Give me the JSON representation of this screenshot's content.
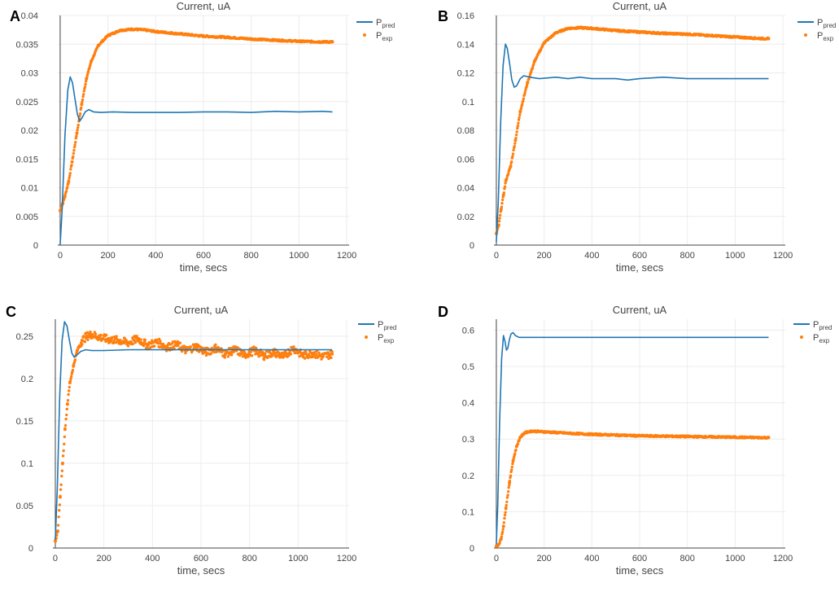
{
  "chart_data": [
    {
      "panel_label": "A",
      "type": "line",
      "title": "Current, uA",
      "xlabel": "time, secs",
      "ylabel": "",
      "xlim": [
        -10,
        1210
      ],
      "ylim": [
        0,
        0.04
      ],
      "xticks": [
        0,
        200,
        400,
        600,
        800,
        1000,
        1200
      ],
      "yticks": [
        0,
        0.005,
        0.01,
        0.015,
        0.02,
        0.025,
        0.03,
        0.035,
        0.04
      ],
      "ytick_labels": [
        "0",
        "0.005",
        "0.01",
        "0.015",
        "0.02",
        "0.025",
        "0.03",
        "0.035",
        "0.04"
      ],
      "grid": true,
      "legend_position": "top-right",
      "series": [
        {
          "name_main": "P",
          "name_sub": "pred",
          "style": "line",
          "color": "#1f77b4",
          "x": [
            0,
            8,
            20,
            32,
            42,
            52,
            62,
            72,
            82,
            92,
            105,
            120,
            140,
            170,
            220,
            300,
            400,
            500,
            600,
            700,
            800,
            900,
            1000,
            1100,
            1140
          ],
          "y": [
            0,
            0.006,
            0.019,
            0.027,
            0.0293,
            0.0282,
            0.0255,
            0.0228,
            0.0216,
            0.0222,
            0.0232,
            0.0236,
            0.0232,
            0.0231,
            0.0232,
            0.0231,
            0.0231,
            0.0231,
            0.0232,
            0.0232,
            0.0231,
            0.0233,
            0.0232,
            0.0233,
            0.0232
          ]
        },
        {
          "name_main": "P",
          "name_sub": "exp",
          "style": "markers",
          "color": "#ff7f0e",
          "x": [
            0,
            10,
            20,
            35,
            50,
            70,
            90,
            110,
            130,
            160,
            200,
            250,
            300,
            350,
            400,
            500,
            600,
            700,
            800,
            900,
            1000,
            1100,
            1140
          ],
          "y": [
            0.006,
            0.0072,
            0.0085,
            0.011,
            0.0145,
            0.0195,
            0.0245,
            0.029,
            0.032,
            0.0348,
            0.0365,
            0.0374,
            0.0376,
            0.0375,
            0.0372,
            0.0368,
            0.0364,
            0.0362,
            0.0359,
            0.0357,
            0.0355,
            0.0354,
            0.0354
          ]
        }
      ]
    },
    {
      "panel_label": "B",
      "type": "line",
      "title": "Current, uA",
      "xlabel": "time, secs",
      "ylabel": "",
      "xlim": [
        -10,
        1210
      ],
      "ylim": [
        0,
        0.16
      ],
      "xticks": [
        0,
        200,
        400,
        600,
        800,
        1000,
        1200
      ],
      "yticks": [
        0,
        0.02,
        0.04,
        0.06,
        0.08,
        0.1,
        0.12,
        0.14,
        0.16
      ],
      "ytick_labels": [
        "0",
        "0.02",
        "0.04",
        "0.06",
        "0.08",
        "0.1",
        "0.12",
        "0.14",
        "0.16"
      ],
      "grid": true,
      "legend_position": "top-right",
      "series": [
        {
          "name_main": "P",
          "name_sub": "pred",
          "style": "line",
          "color": "#1f77b4",
          "x": [
            0,
            8,
            18,
            28,
            38,
            46,
            55,
            65,
            75,
            85,
            100,
            115,
            140,
            180,
            250,
            300,
            350,
            400,
            500,
            550,
            600,
            700,
            800,
            900,
            1000,
            1100,
            1140
          ],
          "y": [
            0.002,
            0.03,
            0.085,
            0.125,
            0.14,
            0.137,
            0.127,
            0.115,
            0.11,
            0.111,
            0.116,
            0.118,
            0.117,
            0.116,
            0.117,
            0.116,
            0.117,
            0.116,
            0.116,
            0.115,
            0.116,
            0.117,
            0.116,
            0.116,
            0.116,
            0.116,
            0.116
          ]
        },
        {
          "name_main": "P",
          "name_sub": "exp",
          "style": "markers",
          "color": "#ff7f0e",
          "x": [
            0,
            10,
            20,
            30,
            40,
            60,
            80,
            100,
            130,
            160,
            200,
            250,
            300,
            350,
            400,
            500,
            600,
            700,
            800,
            900,
            1000,
            1100,
            1140
          ],
          "y": [
            0.008,
            0.014,
            0.025,
            0.035,
            0.045,
            0.055,
            0.073,
            0.093,
            0.113,
            0.128,
            0.141,
            0.148,
            0.151,
            0.1515,
            0.151,
            0.1495,
            0.1485,
            0.1475,
            0.147,
            0.146,
            0.145,
            0.144,
            0.1438
          ]
        }
      ]
    },
    {
      "panel_label": "C",
      "type": "line",
      "title": "Current, uA",
      "xlabel": "time, secs",
      "ylabel": "",
      "xlim": [
        -10,
        1210
      ],
      "ylim": [
        0,
        0.27
      ],
      "xticks": [
        0,
        200,
        400,
        600,
        800,
        1000,
        1200
      ],
      "yticks": [
        0,
        0.05,
        0.1,
        0.15,
        0.2,
        0.25
      ],
      "ytick_labels": [
        "0",
        "0.05",
        "0.1",
        "0.15",
        "0.2",
        "0.25"
      ],
      "grid": true,
      "legend_position": "top-right",
      "series": [
        {
          "name_main": "P",
          "name_sub": "pred",
          "style": "line",
          "color": "#1f77b4",
          "x": [
            0,
            8,
            18,
            28,
            38,
            48,
            58,
            68,
            78,
            90,
            105,
            125,
            150,
            200,
            300,
            400,
            500,
            600,
            700,
            800,
            900,
            1000,
            1100,
            1140
          ],
          "y": [
            0.01,
            0.07,
            0.18,
            0.245,
            0.267,
            0.262,
            0.245,
            0.23,
            0.225,
            0.228,
            0.232,
            0.234,
            0.233,
            0.233,
            0.234,
            0.234,
            0.234,
            0.234,
            0.234,
            0.234,
            0.234,
            0.234,
            0.234,
            0.234
          ]
        },
        {
          "name_main": "P",
          "name_sub": "exp",
          "style": "markers",
          "color": "#ff7f0e",
          "x": [
            0,
            10,
            20,
            30,
            40,
            50,
            60,
            75,
            90,
            110,
            130,
            150,
            180,
            220,
            260,
            300,
            340,
            380,
            420,
            460,
            500,
            540,
            580,
            620,
            660,
            700,
            740,
            780,
            820,
            860,
            900,
            940,
            980,
            1020,
            1060,
            1100,
            1140
          ],
          "y": [
            0.008,
            0.02,
            0.06,
            0.1,
            0.14,
            0.17,
            0.195,
            0.215,
            0.233,
            0.245,
            0.25,
            0.252,
            0.249,
            0.246,
            0.245,
            0.242,
            0.247,
            0.239,
            0.243,
            0.237,
            0.24,
            0.233,
            0.238,
            0.231,
            0.236,
            0.229,
            0.234,
            0.228,
            0.233,
            0.227,
            0.231,
            0.226,
            0.236,
            0.227,
            0.23,
            0.226,
            0.229
          ]
        }
      ]
    },
    {
      "panel_label": "D",
      "type": "line",
      "title": "Current, uA",
      "xlabel": "time, secs",
      "ylabel": "",
      "xlim": [
        -10,
        1210
      ],
      "ylim": [
        0,
        0.63
      ],
      "xticks": [
        0,
        200,
        400,
        600,
        800,
        1000,
        1200
      ],
      "yticks": [
        0,
        0.1,
        0.2,
        0.3,
        0.4,
        0.5,
        0.6
      ],
      "ytick_labels": [
        "0",
        "0.1",
        "0.2",
        "0.3",
        "0.4",
        "0.5",
        "0.6"
      ],
      "grid": true,
      "legend_position": "top-right",
      "series": [
        {
          "name_main": "P",
          "name_sub": "pred",
          "style": "line",
          "color": "#1f77b4",
          "x": [
            0,
            6,
            14,
            22,
            30,
            36,
            42,
            48,
            55,
            62,
            70,
            80,
            95,
            120,
            200,
            400,
            600,
            800,
            1000,
            1140
          ],
          "y": [
            0.01,
            0.12,
            0.35,
            0.52,
            0.585,
            0.57,
            0.545,
            0.55,
            0.575,
            0.59,
            0.593,
            0.585,
            0.58,
            0.58,
            0.58,
            0.58,
            0.58,
            0.58,
            0.58,
            0.58
          ]
        },
        {
          "name_main": "P",
          "name_sub": "exp",
          "style": "markers",
          "color": "#ff7f0e",
          "x": [
            0,
            10,
            20,
            30,
            40,
            55,
            70,
            85,
            100,
            120,
            150,
            200,
            300,
            400,
            500,
            600,
            700,
            800,
            900,
            1000,
            1100,
            1140
          ],
          "y": [
            0.005,
            0.01,
            0.025,
            0.06,
            0.11,
            0.18,
            0.24,
            0.28,
            0.305,
            0.318,
            0.322,
            0.32,
            0.316,
            0.313,
            0.311,
            0.309,
            0.308,
            0.307,
            0.306,
            0.305,
            0.304,
            0.304
          ]
        }
      ]
    }
  ]
}
